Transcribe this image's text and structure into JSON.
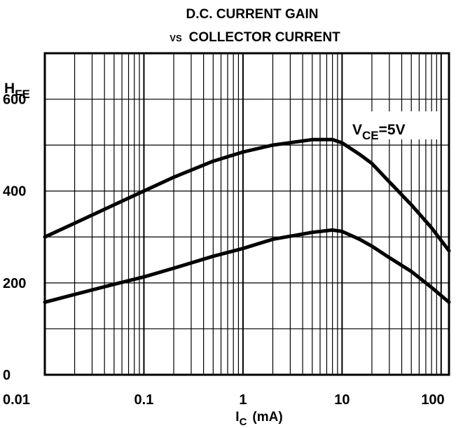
{
  "chart_data": {
    "type": "line",
    "title_line1": "D.C. CURRENT GAIN",
    "title_line2_small": "VS",
    "title_line2": "COLLECTOR CURRENT",
    "ylabel_main": "H",
    "ylabel_sub": "FE",
    "xlabel_main": "I",
    "xlabel_sub": "C",
    "xlabel_unit": "(mA)",
    "annotation_main": "V",
    "annotation_sub": "CE",
    "annotation_value": "=5V",
    "x_scale": "log",
    "xlim": [
      0.01,
      120
    ],
    "ylim": [
      0,
      700
    ],
    "x_ticks": [
      {
        "value": 0.01,
        "label": "0.01"
      },
      {
        "value": 0.1,
        "label": "0.1"
      },
      {
        "value": 1,
        "label": "1"
      },
      {
        "value": 10,
        "label": "10"
      },
      {
        "value": 100,
        "label": "100"
      }
    ],
    "y_ticks": [
      {
        "value": 0,
        "label": "0"
      },
      {
        "value": 200,
        "label": "200"
      },
      {
        "value": 400,
        "label": "400"
      },
      {
        "value": 600,
        "label": "600"
      }
    ],
    "grid": true,
    "series": [
      {
        "x": [
          0.01,
          0.02,
          0.05,
          0.1,
          0.2,
          0.5,
          1,
          2,
          5,
          8,
          10,
          15,
          20,
          30,
          50,
          80,
          120
        ],
        "y": [
          300,
          330,
          370,
          400,
          430,
          465,
          485,
          500,
          512,
          512,
          505,
          480,
          460,
          420,
          370,
          320,
          270
        ]
      },
      {
        "x": [
          0.01,
          0.02,
          0.05,
          0.1,
          0.2,
          0.5,
          1,
          2,
          5,
          8,
          10,
          15,
          20,
          30,
          50,
          80,
          120
        ],
        "y": [
          158,
          175,
          197,
          213,
          232,
          258,
          275,
          295,
          310,
          315,
          312,
          295,
          280,
          255,
          225,
          190,
          158
        ]
      }
    ]
  }
}
